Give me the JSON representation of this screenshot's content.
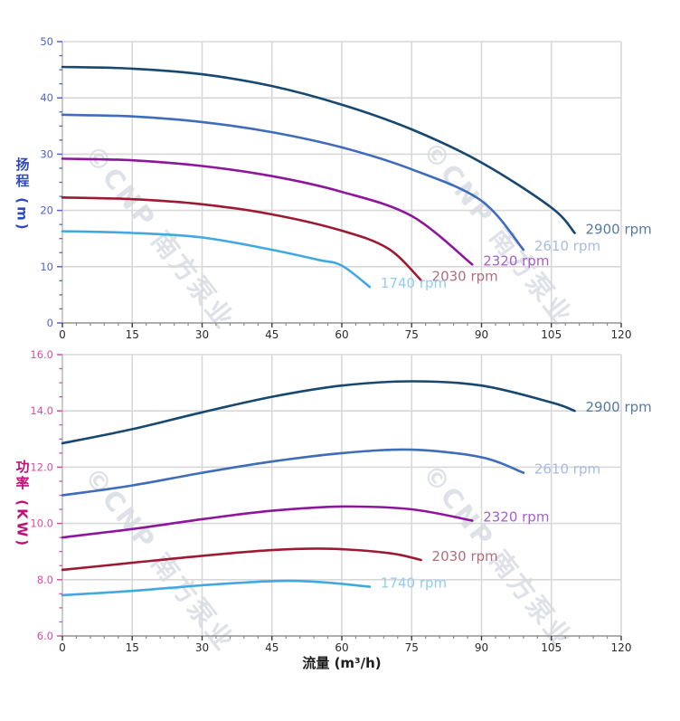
{
  "watermark": {
    "text": "©CNP 南方泵业"
  },
  "grid": {
    "grid_color": "#d8d8d8",
    "y_axis_color": "#c4c4c4",
    "x_axis_color": "#999999",
    "x_tick_color": "#3c3c3c",
    "x_minor_tick_color": "#8a8a8a",
    "x_label_color": "#2b2b2b"
  },
  "chart_data": [
    {
      "type": "line",
      "ylabel": "扬程 (m)",
      "xlabel": "",
      "xlim": [
        0,
        120
      ],
      "ylim": [
        0,
        50
      ],
      "x_minor_step": 3,
      "y_minor_step": 2.5,
      "axis_color": "#5064d4",
      "title_color": "#2f49c0",
      "x_ticks": [
        {
          "v": 0,
          "label": "0"
        },
        {
          "v": 15,
          "label": "15"
        },
        {
          "v": 30,
          "label": "30"
        },
        {
          "v": 45,
          "label": "45"
        },
        {
          "v": 60,
          "label": "60"
        },
        {
          "v": 75,
          "label": "75"
        },
        {
          "v": 90,
          "label": "90"
        },
        {
          "v": 105,
          "label": "105"
        },
        {
          "v": 120,
          "label": "120"
        }
      ],
      "y_ticks": [
        {
          "v": 0,
          "label": "0"
        },
        {
          "v": 10,
          "label": "10"
        },
        {
          "v": 20,
          "label": "20"
        },
        {
          "v": 30,
          "label": "30"
        },
        {
          "v": 40,
          "label": "40"
        },
        {
          "v": 50,
          "label": "50"
        }
      ],
      "series": [
        {
          "name": "2900 rpm",
          "color": "#17486f",
          "label_color": "#567ba2",
          "points": [
            [
              0,
              45.5
            ],
            [
              15,
              45.2
            ],
            [
              30,
              44.2
            ],
            [
              45,
              42.1
            ],
            [
              60,
              38.8
            ],
            [
              75,
              34.4
            ],
            [
              90,
              28.5
            ],
            [
              105,
              20.5
            ],
            [
              110,
              16.0
            ]
          ]
        },
        {
          "name": "2610 rpm",
          "color": "#3f6cbb",
          "label_color": "#a9bbe4",
          "points": [
            [
              0,
              37.0
            ],
            [
              15,
              36.7
            ],
            [
              30,
              35.7
            ],
            [
              45,
              33.9
            ],
            [
              60,
              31.2
            ],
            [
              75,
              27.3
            ],
            [
              90,
              21.7
            ],
            [
              99,
              13.0
            ]
          ]
        },
        {
          "name": "2320 rpm",
          "color": "#8e169c",
          "label_color": "#a75fc4",
          "points": [
            [
              0,
              29.2
            ],
            [
              15,
              28.9
            ],
            [
              30,
              27.9
            ],
            [
              45,
              26.1
            ],
            [
              60,
              23.3
            ],
            [
              75,
              19.0
            ],
            [
              88,
              10.4
            ]
          ]
        },
        {
          "name": "2030 rpm",
          "color": "#9d1a33",
          "label_color": "#b26e7e",
          "points": [
            [
              0,
              22.3
            ],
            [
              15,
              22.0
            ],
            [
              30,
              21.1
            ],
            [
              45,
              19.3
            ],
            [
              60,
              16.4
            ],
            [
              70,
              13.2
            ],
            [
              77,
              7.6
            ]
          ]
        },
        {
          "name": "1740 rpm",
          "color": "#41a9e0",
          "label_color": "#92cdf0",
          "points": [
            [
              0,
              16.3
            ],
            [
              15,
              16.0
            ],
            [
              30,
              15.2
            ],
            [
              45,
              13.0
            ],
            [
              55,
              11.2
            ],
            [
              60,
              10.2
            ],
            [
              66,
              6.4
            ]
          ]
        }
      ]
    },
    {
      "type": "line",
      "ylabel": "功率 (KW)",
      "xlabel": "流量 (m³/h)",
      "xlim": [
        0,
        120
      ],
      "ylim": [
        6,
        16
      ],
      "x_minor_step": 3,
      "y_minor_step": 0.5,
      "axis_color": "#de4d9d",
      "title_color": "#c01077",
      "x_ticks": [
        {
          "v": 0,
          "label": "0"
        },
        {
          "v": 15,
          "label": "15"
        },
        {
          "v": 30,
          "label": "30"
        },
        {
          "v": 45,
          "label": "45"
        },
        {
          "v": 60,
          "label": "60"
        },
        {
          "v": 75,
          "label": "75"
        },
        {
          "v": 90,
          "label": "90"
        },
        {
          "v": 105,
          "label": "105"
        },
        {
          "v": 120,
          "label": "120"
        }
      ],
      "y_ticks": [
        {
          "v": 6,
          "label": "6.0"
        },
        {
          "v": 8,
          "label": "8.0"
        },
        {
          "v": 10,
          "label": "10.0"
        },
        {
          "v": 12,
          "label": "12.0"
        },
        {
          "v": 14,
          "label": "14.0"
        },
        {
          "v": 16,
          "label": "16.0"
        }
      ],
      "series": [
        {
          "name": "2900 rpm",
          "color": "#17486f",
          "label_color": "#567ba2",
          "points": [
            [
              0,
              12.85
            ],
            [
              15,
              13.35
            ],
            [
              30,
              13.95
            ],
            [
              45,
              14.5
            ],
            [
              60,
              14.9
            ],
            [
              75,
              15.05
            ],
            [
              90,
              14.9
            ],
            [
              105,
              14.3
            ],
            [
              110,
              14.0
            ]
          ]
        },
        {
          "name": "2610 rpm",
          "color": "#3f6cbb",
          "label_color": "#a9bbe4",
          "points": [
            [
              0,
              11.0
            ],
            [
              15,
              11.35
            ],
            [
              30,
              11.8
            ],
            [
              45,
              12.2
            ],
            [
              60,
              12.5
            ],
            [
              75,
              12.62
            ],
            [
              90,
              12.35
            ],
            [
              99,
              11.8
            ]
          ]
        },
        {
          "name": "2320 rpm",
          "color": "#8e169c",
          "label_color": "#a75fc4",
          "points": [
            [
              0,
              9.5
            ],
            [
              15,
              9.8
            ],
            [
              30,
              10.15
            ],
            [
              45,
              10.45
            ],
            [
              60,
              10.6
            ],
            [
              75,
              10.5
            ],
            [
              88,
              10.1
            ]
          ]
        },
        {
          "name": "2030 rpm",
          "color": "#9d1a33",
          "label_color": "#b26e7e",
          "points": [
            [
              0,
              8.35
            ],
            [
              15,
              8.6
            ],
            [
              30,
              8.85
            ],
            [
              45,
              9.05
            ],
            [
              57,
              9.1
            ],
            [
              70,
              8.95
            ],
            [
              77,
              8.7
            ]
          ]
        },
        {
          "name": "1740 rpm",
          "color": "#41a9e0",
          "label_color": "#92cdf0",
          "points": [
            [
              0,
              7.45
            ],
            [
              15,
              7.6
            ],
            [
              30,
              7.8
            ],
            [
              45,
              7.95
            ],
            [
              55,
              7.92
            ],
            [
              66,
              7.75
            ]
          ]
        }
      ]
    }
  ]
}
